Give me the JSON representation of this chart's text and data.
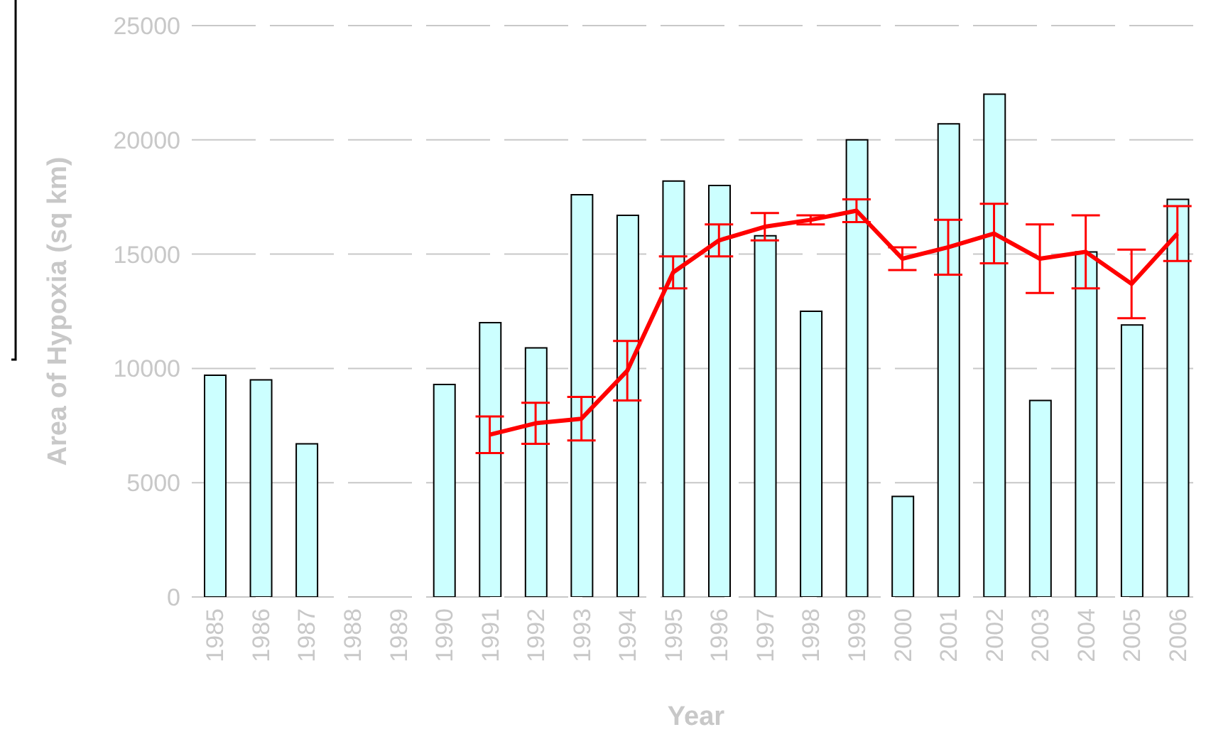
{
  "chart_data": {
    "type": "bar",
    "xlabel": "Year",
    "ylabel": "Area of Hypoxia (sq km)",
    "categories": [
      "1985",
      "1986",
      "1987",
      "1988",
      "1989",
      "1990",
      "1991",
      "1992",
      "1993",
      "1994",
      "1995",
      "1996",
      "1997",
      "1998",
      "1999",
      "2000",
      "2001",
      "2002",
      "2003",
      "2004",
      "2005",
      "2006"
    ],
    "series": [
      {
        "color": "#ccffff",
        "values": [
          9700,
          9500,
          6700,
          null,
          null,
          9300,
          12000,
          10900,
          17600,
          16700,
          18200,
          18000,
          15800,
          12500,
          20000,
          4400,
          20700,
          22000,
          8600,
          15100,
          11900,
          17400
        ]
      },
      {
        "type": "line",
        "color": "#ff0000",
        "values": [
          null,
          null,
          null,
          null,
          null,
          null,
          7100,
          7600,
          7800,
          9900,
          14200,
          15600,
          16200,
          16500,
          16900,
          14800,
          15300,
          15900,
          14800,
          15100,
          13700,
          15900
        ],
        "errors": [
          null,
          null,
          null,
          null,
          null,
          null,
          800,
          900,
          950,
          1300,
          700,
          700,
          600,
          200,
          500,
          500,
          1200,
          1300,
          1500,
          1600,
          1500,
          1200
        ],
        "marker": "none",
        "line_style": "solid"
      }
    ],
    "ylim": [
      0,
      25000
    ],
    "yticks": [
      0,
      5000,
      10000,
      15000,
      20000,
      25000
    ],
    "grid": "y",
    "legend": false
  }
}
